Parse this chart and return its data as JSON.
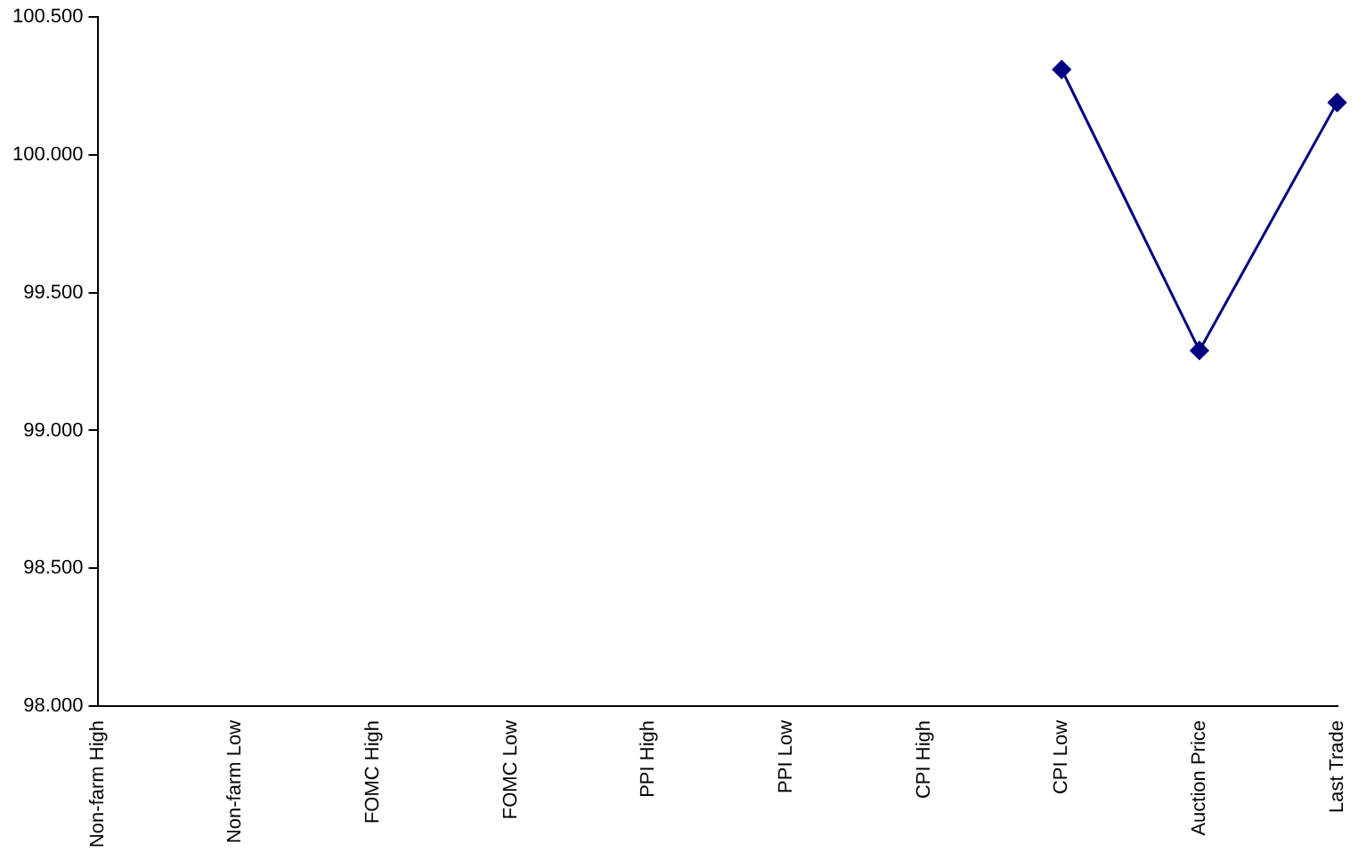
{
  "chart_data": {
    "type": "line",
    "categories": [
      "Non-farm High",
      "Non-farm Low",
      "FOMC High",
      "FOMC Low",
      "PPI High",
      "PPI Low",
      "CPI High",
      "CPI Low",
      "Auction Price",
      "Last Trade"
    ],
    "series": [
      {
        "color": "#000080",
        "values": [
          null,
          null,
          null,
          null,
          null,
          null,
          null,
          100.31,
          99.29,
          100.19
        ]
      }
    ],
    "ylim": [
      98,
      100.5
    ],
    "yticks": [
      {
        "value": 98,
        "label": "98.000"
      },
      {
        "value": 98.5,
        "label": "98.500"
      },
      {
        "value": 99,
        "label": "99.000"
      },
      {
        "value": 99.5,
        "label": "99.500"
      },
      {
        "value": 100,
        "label": "100.000"
      },
      {
        "value": 100.5,
        "label": "100.500"
      }
    ],
    "grid": false,
    "legend": false,
    "marker": "diamond",
    "line_style": "solid"
  }
}
